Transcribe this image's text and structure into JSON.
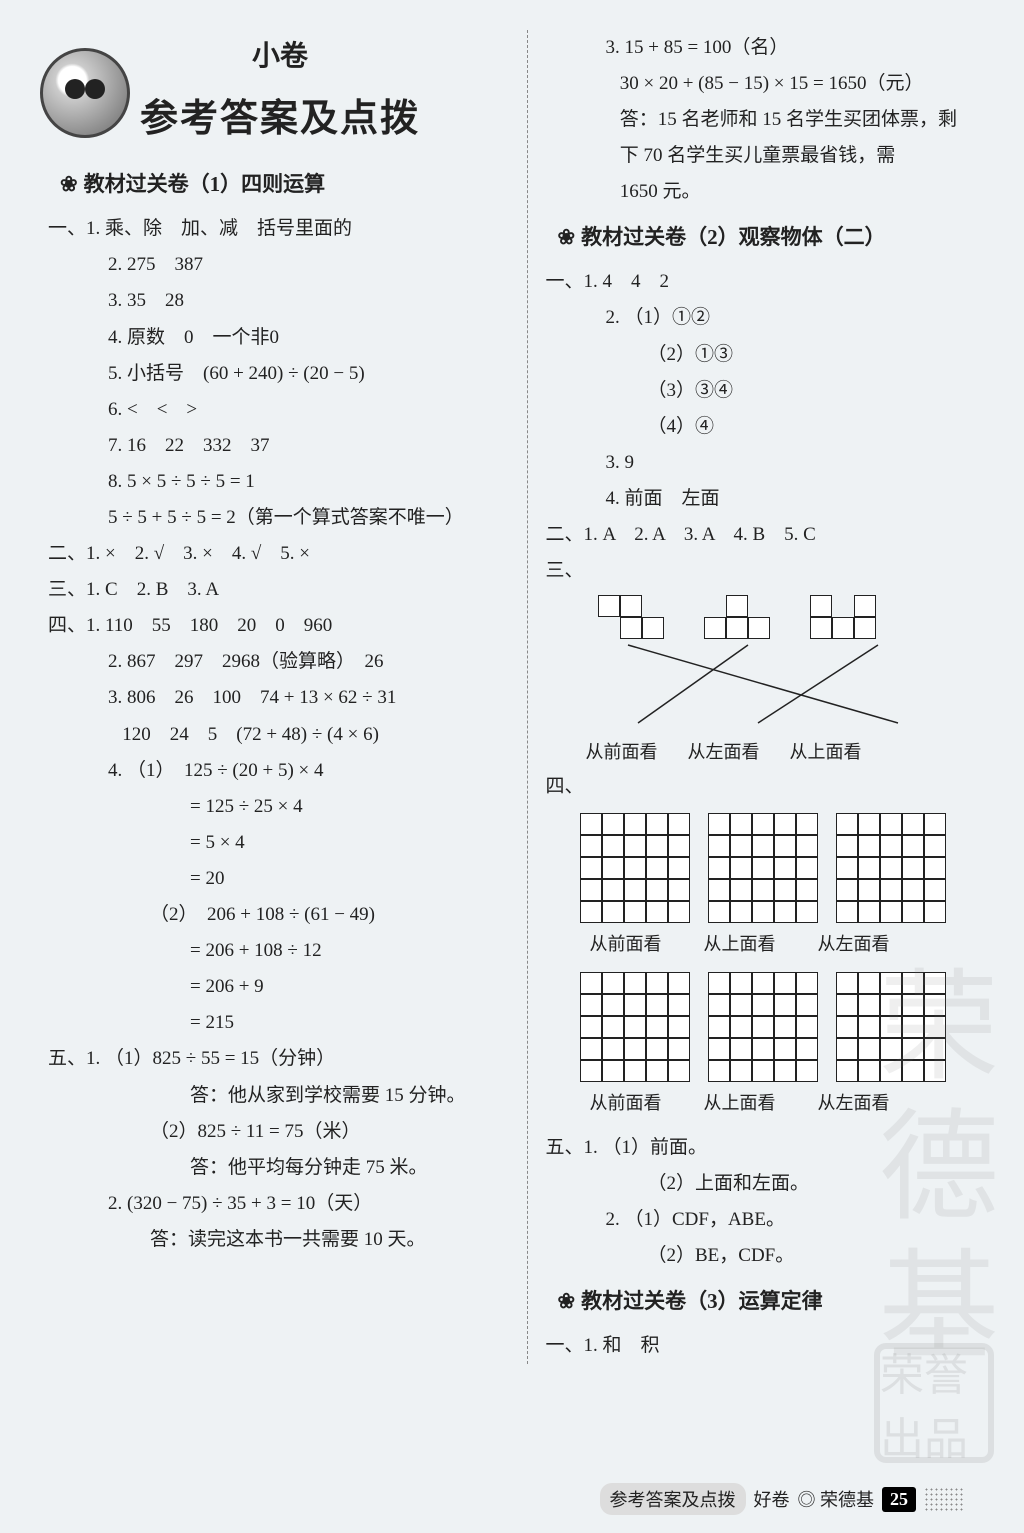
{
  "page_background": "#eef2f4",
  "text_color": "#222222",
  "body_fontsize": 19,
  "line_height": 1.9,
  "title": {
    "sub": "小卷",
    "main": "参考答案及点拨"
  },
  "section1": {
    "head": "教材过关卷（1）四则运算",
    "yi": {
      "1": "乘、除　加、减　括号里面的",
      "2": "275　387",
      "3": "35　28",
      "4": "原数　0　一个非0",
      "5": "小括号　(60 + 240) ÷ (20 − 5)",
      "6": "<　<　>",
      "7": "16　22　332　37",
      "8a": "5 × 5 ÷ 5 ÷ 5 = 1",
      "8b": "5 ÷ 5 + 5 ÷ 5 = 2（第一个算式答案不唯一）"
    },
    "er": "1. ×　2. √　3. ×　4. √　5. ×",
    "san": "1. C　2. B　3. A",
    "si": {
      "1": "110　55　180　20　0　960",
      "2": "867　297　2968（验算略）　26",
      "3a": "806　26　100　74 + 13 × 62 ÷ 31",
      "3b": "120　24　5　(72 + 48) ÷ (4 × 6)",
      "4_1_a": "（1）　125 ÷ (20 + 5) × 4",
      "4_1_b": "= 125 ÷ 25 × 4",
      "4_1_c": "= 5 × 4",
      "4_1_d": "= 20",
      "4_2_a": "（2）　206 + 108 ÷ (61 − 49)",
      "4_2_b": "= 206 + 108 ÷ 12",
      "4_2_c": "= 206 + 9",
      "4_2_d": "= 215"
    },
    "wu": {
      "1a": "（1）825 ÷ 55 = 15（分钟）",
      "1b": "答：他从家到学校需要 15 分钟。",
      "1c": "（2）825 ÷ 11 = 75（米）",
      "1d": "答：他平均每分钟走 75 米。",
      "2a": "(320 − 75) ÷ 35 + 3 = 10（天）",
      "2b": "答：读完这本书一共需要 10 天。",
      "3a": "15 + 85 = 100（名）",
      "3b": "30 × 20 + (85 − 15) × 15 = 1650（元）",
      "3c": "答：15 名老师和 15 名学生买团体票，剩",
      "3d": "下 70 名学生买儿童票最省钱，需",
      "3e": "1650 元。"
    }
  },
  "section2": {
    "head": "教材过关卷（2）观察物体（二）",
    "yi": {
      "1": "4　4　2",
      "2_1": "（1）①②",
      "2_2": "（2）①③",
      "2_3": "（3）③④",
      "2_4": "（4）④",
      "3": "9",
      "4": "前面　左面"
    },
    "er": "1. A　2. A　3. A　4. B　5. C",
    "san_views": {
      "a": "从前面看",
      "b": "从左面看",
      "c": "从上面看"
    },
    "si_views1": {
      "a": "从前面看",
      "b": "从上面看",
      "c": "从左面看"
    },
    "si_views2": {
      "a": "从前面看",
      "b": "从上面看",
      "c": "从左面看"
    },
    "wu": {
      "1a": "（1）前面。",
      "1b": "（2）上面和左面。",
      "2a": "（1）CDF，ABE。",
      "2b": "（2）BE，CDF。"
    }
  },
  "section3": {
    "head": "教材过关卷（3）运算定律",
    "yi_1": "和　积"
  },
  "shapes": {
    "cell_size": 22,
    "border_color": "#222222",
    "tetrominoes": [
      [
        [
          1,
          1,
          0
        ],
        [
          0,
          1,
          1
        ]
      ],
      [
        [
          0,
          1,
          0
        ],
        [
          1,
          1,
          1
        ]
      ],
      [
        [
          1,
          0,
          1
        ],
        [
          1,
          1,
          1
        ]
      ]
    ],
    "connect_line_color": "#222222"
  },
  "grids": {
    "cols": 5,
    "rows": 5,
    "cell_size": 22,
    "border_color": "#222222",
    "fill": "#ffffff"
  },
  "labels": {
    "yi": "一、",
    "er": "二、",
    "san": "三、",
    "si": "四、",
    "wu": "五、",
    "n1": "1.",
    "n2": "2.",
    "n3": "3.",
    "n4": "4.",
    "n5": "5.",
    "n6": "6.",
    "n7": "7.",
    "n8": "8."
  },
  "watermark": "荣德基",
  "stamp": "荣誉出品",
  "footer": {
    "left": "参考答案及点拨",
    "badge": "好卷",
    "brand": "◎ 荣德基",
    "page": "25"
  }
}
